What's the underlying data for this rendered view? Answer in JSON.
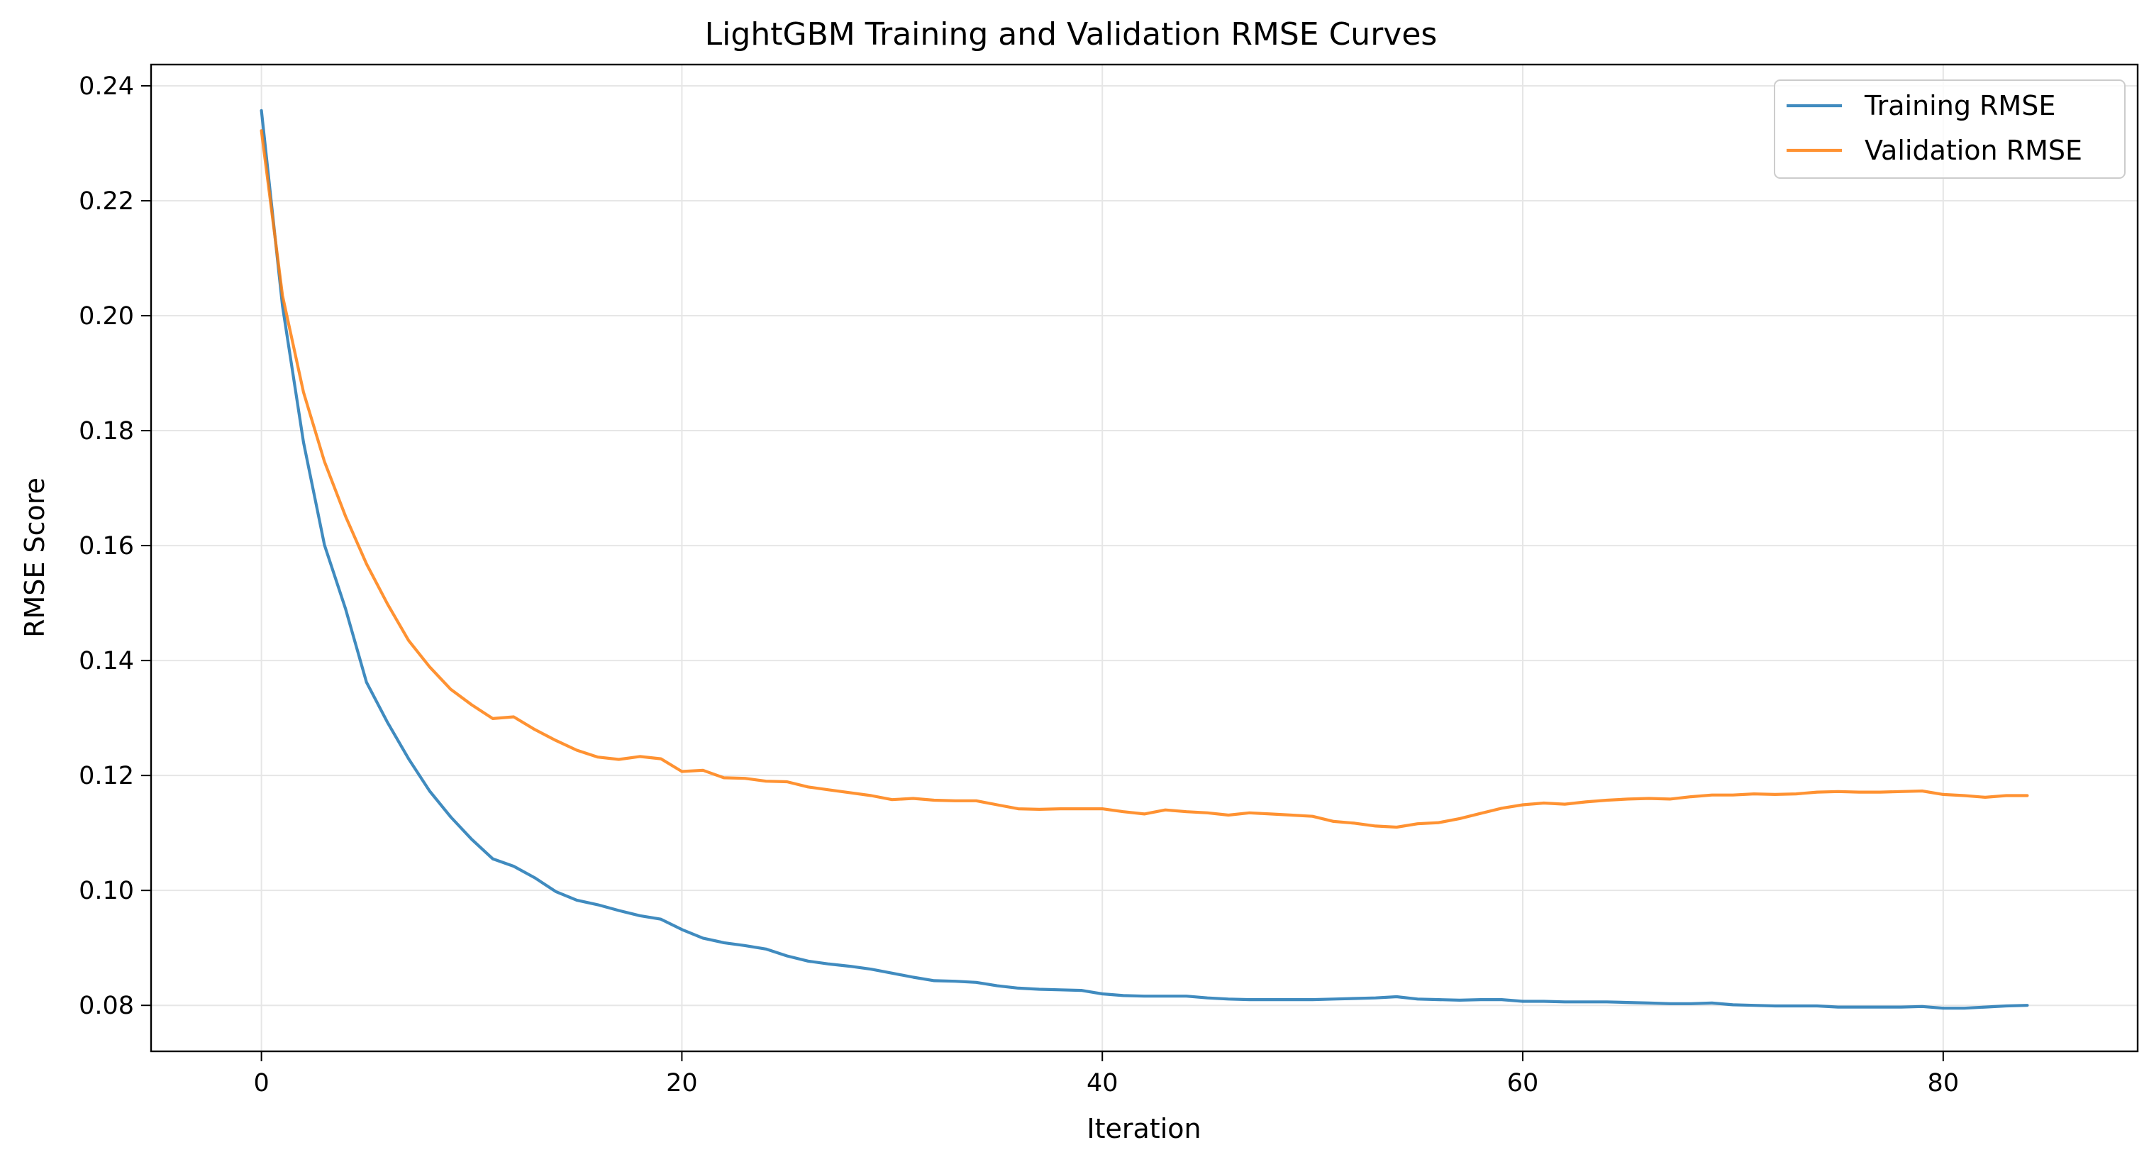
{
  "chart_data": {
    "type": "line",
    "title": "LightGBM Training and Validation RMSE Curves",
    "xlabel": "Iteration",
    "ylabel": "RMSE Score",
    "xlim": [
      -5.25,
      89.25
    ],
    "ylim": [
      0.072,
      0.2437
    ],
    "xticks": [
      0,
      20,
      40,
      60,
      80
    ],
    "xtick_labels": [
      "0",
      "20",
      "40",
      "60",
      "80"
    ],
    "yticks": [
      0.08,
      0.1,
      0.12,
      0.14,
      0.16,
      0.18,
      0.2,
      0.22,
      0.24
    ],
    "ytick_labels": [
      "0.08",
      "0.10",
      "0.12",
      "0.14",
      "0.16",
      "0.18",
      "0.20",
      "0.22",
      "0.24"
    ],
    "grid": true,
    "legend_position": "top-right",
    "x": [
      0,
      1,
      2,
      3,
      4,
      5,
      6,
      7,
      8,
      9,
      10,
      11,
      12,
      13,
      14,
      15,
      16,
      17,
      18,
      19,
      20,
      21,
      22,
      23,
      24,
      25,
      26,
      27,
      28,
      29,
      30,
      31,
      32,
      33,
      34,
      35,
      36,
      37,
      38,
      39,
      40,
      41,
      42,
      43,
      44,
      45,
      46,
      47,
      48,
      49,
      50,
      51,
      52,
      53,
      54,
      55,
      56,
      57,
      58,
      59,
      60,
      61,
      62,
      63,
      64,
      65,
      66,
      67,
      68,
      69,
      70,
      71,
      72,
      73,
      74,
      75,
      76,
      77,
      78,
      79,
      80,
      81,
      82,
      83,
      84
    ],
    "series": [
      {
        "name": "Training RMSE",
        "color": "#1f77b4",
        "values": [
          0.2357,
          0.2017,
          0.178,
          0.1601,
          0.149,
          0.1362,
          0.1292,
          0.1229,
          0.1173,
          0.1128,
          0.1089,
          0.1055,
          0.1042,
          0.1022,
          0.0998,
          0.0983,
          0.0975,
          0.0965,
          0.0956,
          0.095,
          0.0932,
          0.0917,
          0.0909,
          0.0904,
          0.0898,
          0.0886,
          0.0877,
          0.0872,
          0.0868,
          0.0863,
          0.0856,
          0.0849,
          0.0843,
          0.0842,
          0.084,
          0.0834,
          0.083,
          0.0828,
          0.0827,
          0.0826,
          0.082,
          0.0817,
          0.0816,
          0.0816,
          0.0816,
          0.0813,
          0.0811,
          0.081,
          0.081,
          0.081,
          0.081,
          0.0811,
          0.0812,
          0.0813,
          0.0815,
          0.0811,
          0.081,
          0.0809,
          0.081,
          0.081,
          0.0807,
          0.0807,
          0.0806,
          0.0806,
          0.0806,
          0.0805,
          0.0804,
          0.0803,
          0.0803,
          0.0804,
          0.0801,
          0.08,
          0.0799,
          0.0799,
          0.0799,
          0.0797,
          0.0797,
          0.0797,
          0.0797,
          0.0798,
          0.0795,
          0.0795,
          0.0797,
          0.0799,
          0.08
        ]
      },
      {
        "name": "Validation RMSE",
        "color": "#ff7f0e",
        "values": [
          0.2322,
          0.2035,
          0.1867,
          0.1746,
          0.1651,
          0.1568,
          0.1498,
          0.1435,
          0.1389,
          0.135,
          0.1323,
          0.1299,
          0.1302,
          0.128,
          0.1261,
          0.1244,
          0.1232,
          0.1228,
          0.1233,
          0.1229,
          0.1207,
          0.1209,
          0.1196,
          0.1195,
          0.119,
          0.1189,
          0.118,
          0.1175,
          0.117,
          0.1165,
          0.1158,
          0.116,
          0.1157,
          0.1156,
          0.1156,
          0.1149,
          0.1142,
          0.1141,
          0.1142,
          0.1142,
          0.1142,
          0.1137,
          0.1133,
          0.114,
          0.1137,
          0.1135,
          0.1131,
          0.1135,
          0.1133,
          0.1131,
          0.1129,
          0.112,
          0.1117,
          0.1112,
          0.111,
          0.1116,
          0.1118,
          0.1125,
          0.1134,
          0.1143,
          0.1149,
          0.1152,
          0.115,
          0.1154,
          0.1157,
          0.1159,
          0.116,
          0.1159,
          0.1163,
          0.1166,
          0.1166,
          0.1168,
          0.1167,
          0.1168,
          0.1171,
          0.1172,
          0.1171,
          0.1171,
          0.1172,
          0.1173,
          0.1167,
          0.1165,
          0.1162,
          0.1165,
          0.1165
        ]
      }
    ]
  }
}
